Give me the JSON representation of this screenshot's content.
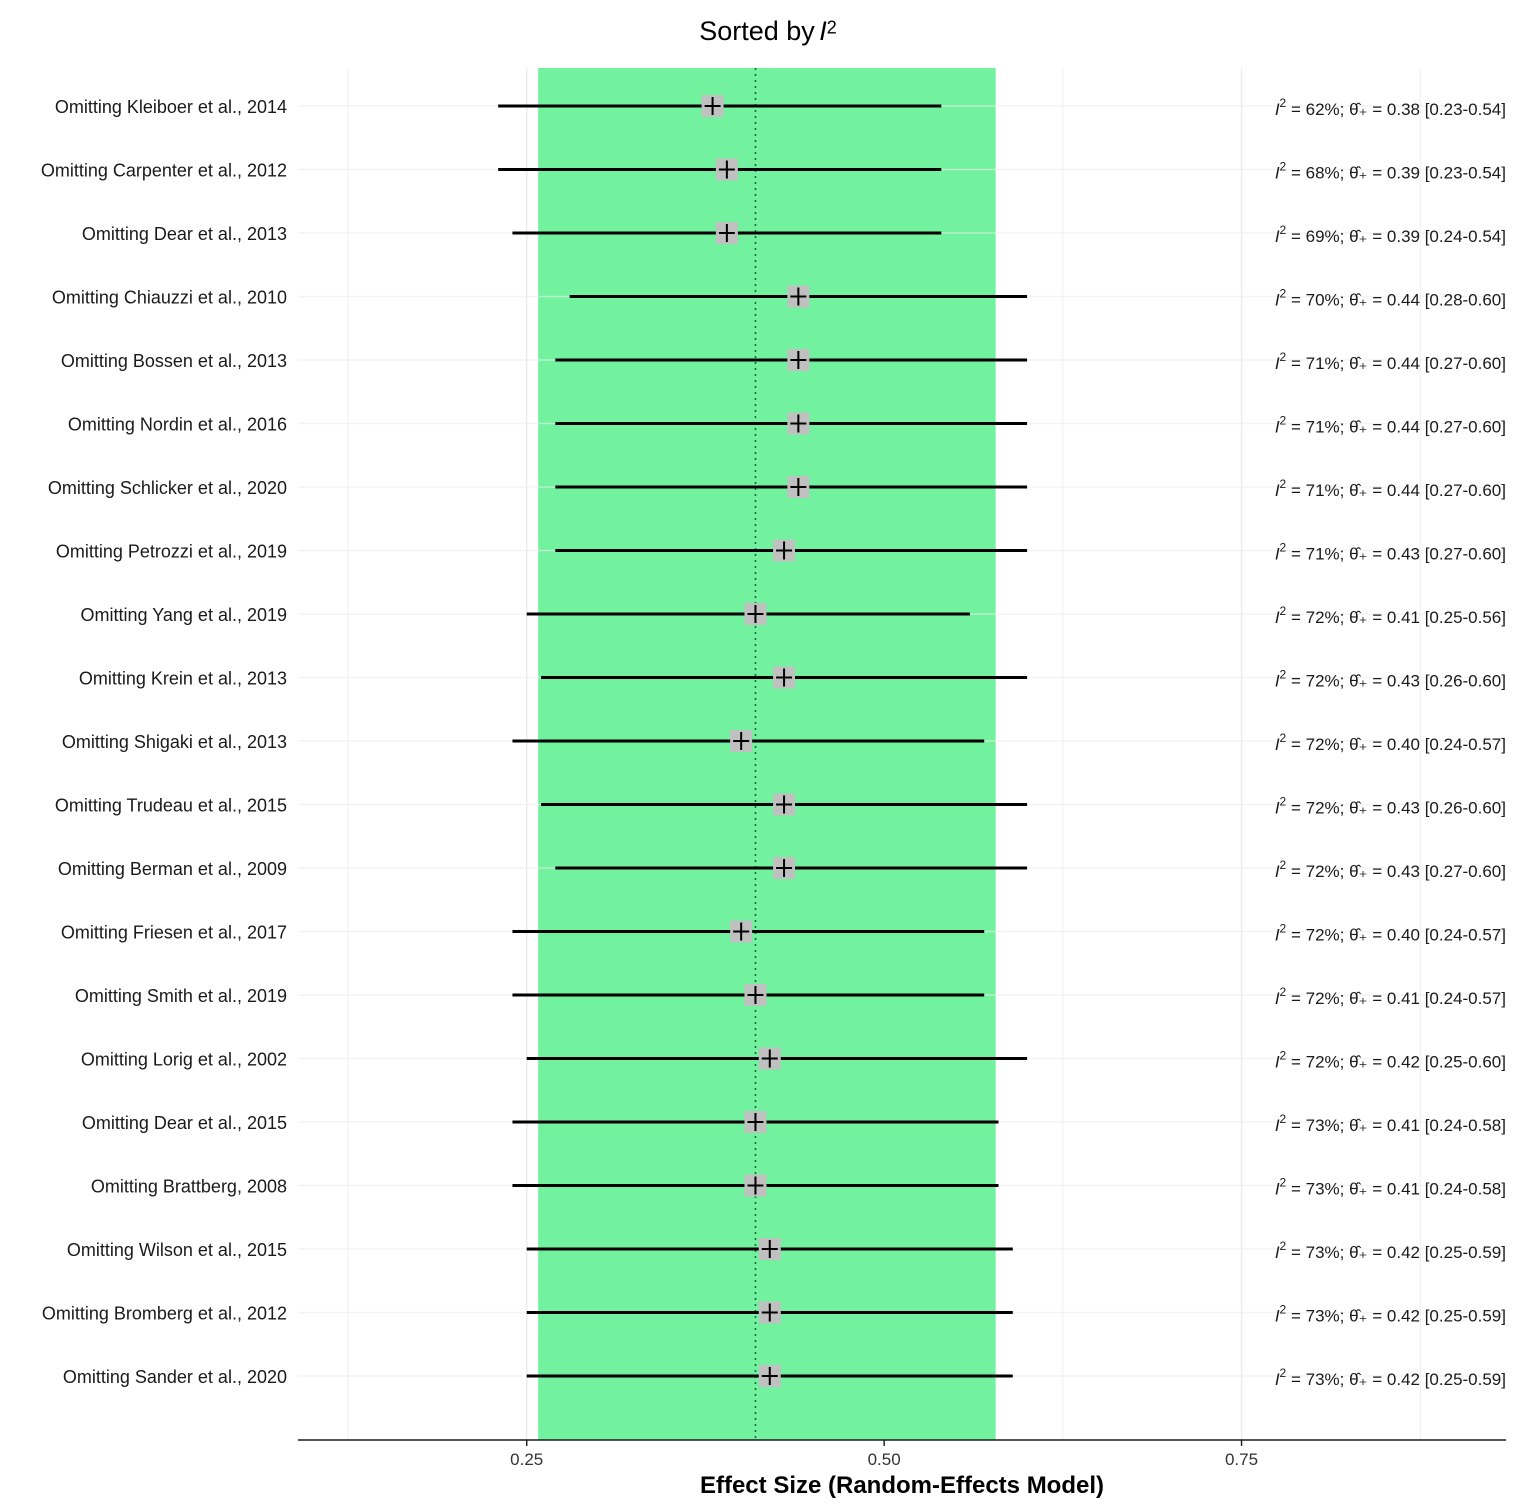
{
  "chart_data": {
    "type": "forest",
    "title": "Sorted by",
    "title_var": "I",
    "title_exp": "2",
    "xlabel": "Effect Size (Random-Effects Model)",
    "xlim": [
      0.09,
      0.935
    ],
    "xticks": [
      0.25,
      0.5,
      0.75
    ],
    "xtick_labels": [
      "0.25",
      "0.50",
      "0.75"
    ],
    "pooled_estimate": 0.41,
    "ci_band": [
      0.258,
      0.578
    ],
    "colors": {
      "band": "#72f29e",
      "box": "#c0c0c0",
      "line": "#000000",
      "grid": "#ebebeb"
    },
    "rows": [
      {
        "label": "Omitting Kleiboer et al., 2014",
        "est": 0.38,
        "lo": 0.23,
        "hi": 0.54,
        "i2": "62%",
        "est_text": "0.38",
        "ci_text": "[0.23-0.54]"
      },
      {
        "label": "Omitting Carpenter et al., 2012",
        "est": 0.39,
        "lo": 0.23,
        "hi": 0.54,
        "i2": "68%",
        "est_text": "0.39",
        "ci_text": "[0.23-0.54]"
      },
      {
        "label": "Omitting Dear et al., 2013",
        "est": 0.39,
        "lo": 0.24,
        "hi": 0.54,
        "i2": "69%",
        "est_text": "0.39",
        "ci_text": "[0.24-0.54]"
      },
      {
        "label": "Omitting Chiauzzi et al., 2010",
        "est": 0.44,
        "lo": 0.28,
        "hi": 0.6,
        "i2": "70%",
        "est_text": "0.44",
        "ci_text": "[0.28-0.60]"
      },
      {
        "label": "Omitting Bossen et al., 2013",
        "est": 0.44,
        "lo": 0.27,
        "hi": 0.6,
        "i2": "71%",
        "est_text": "0.44",
        "ci_text": "[0.27-0.60]"
      },
      {
        "label": "Omitting Nordin et al., 2016",
        "est": 0.44,
        "lo": 0.27,
        "hi": 0.6,
        "i2": "71%",
        "est_text": "0.44",
        "ci_text": "[0.27-0.60]"
      },
      {
        "label": "Omitting Schlicker et al., 2020",
        "est": 0.44,
        "lo": 0.27,
        "hi": 0.6,
        "i2": "71%",
        "est_text": "0.44",
        "ci_text": "[0.27-0.60]"
      },
      {
        "label": "Omitting Petrozzi et al., 2019",
        "est": 0.43,
        "lo": 0.27,
        "hi": 0.6,
        "i2": "71%",
        "est_text": "0.43",
        "ci_text": "[0.27-0.60]"
      },
      {
        "label": "Omitting Yang et al., 2019",
        "est": 0.41,
        "lo": 0.25,
        "hi": 0.56,
        "i2": "72%",
        "est_text": "0.41",
        "ci_text": "[0.25-0.56]"
      },
      {
        "label": "Omitting Krein et al., 2013",
        "est": 0.43,
        "lo": 0.26,
        "hi": 0.6,
        "i2": "72%",
        "est_text": "0.43",
        "ci_text": "[0.26-0.60]"
      },
      {
        "label": "Omitting Shigaki et al., 2013",
        "est": 0.4,
        "lo": 0.24,
        "hi": 0.57,
        "i2": "72%",
        "est_text": "0.40",
        "ci_text": "[0.24-0.57]"
      },
      {
        "label": "Omitting Trudeau et al., 2015",
        "est": 0.43,
        "lo": 0.26,
        "hi": 0.6,
        "i2": "72%",
        "est_text": "0.43",
        "ci_text": "[0.26-0.60]"
      },
      {
        "label": "Omitting Berman et al., 2009",
        "est": 0.43,
        "lo": 0.27,
        "hi": 0.6,
        "i2": "72%",
        "est_text": "0.43",
        "ci_text": "[0.27-0.60]"
      },
      {
        "label": "Omitting Friesen et al., 2017",
        "est": 0.4,
        "lo": 0.24,
        "hi": 0.57,
        "i2": "72%",
        "est_text": "0.40",
        "ci_text": "[0.24-0.57]"
      },
      {
        "label": "Omitting Smith et al., 2019",
        "est": 0.41,
        "lo": 0.24,
        "hi": 0.57,
        "i2": "72%",
        "est_text": "0.41",
        "ci_text": "[0.24-0.57]"
      },
      {
        "label": "Omitting Lorig et al., 2002",
        "est": 0.42,
        "lo": 0.25,
        "hi": 0.6,
        "i2": "72%",
        "est_text": "0.42",
        "ci_text": "[0.25-0.60]"
      },
      {
        "label": "Omitting Dear et al., 2015",
        "est": 0.41,
        "lo": 0.24,
        "hi": 0.58,
        "i2": "73%",
        "est_text": "0.41",
        "ci_text": "[0.24-0.58]"
      },
      {
        "label": "Omitting Brattberg, 2008",
        "est": 0.41,
        "lo": 0.24,
        "hi": 0.58,
        "i2": "73%",
        "est_text": "0.41",
        "ci_text": "[0.24-0.58]"
      },
      {
        "label": "Omitting Wilson et al., 2015",
        "est": 0.42,
        "lo": 0.25,
        "hi": 0.59,
        "i2": "73%",
        "est_text": "0.42",
        "ci_text": "[0.25-0.59]"
      },
      {
        "label": "Omitting Bromberg et al., 2012",
        "est": 0.42,
        "lo": 0.25,
        "hi": 0.59,
        "i2": "73%",
        "est_text": "0.42",
        "ci_text": "[0.25-0.59]"
      },
      {
        "label": "Omitting Sander et al., 2020",
        "est": 0.42,
        "lo": 0.25,
        "hi": 0.59,
        "i2": "73%",
        "est_text": "0.42",
        "ci_text": "[0.25-0.59]"
      }
    ]
  }
}
